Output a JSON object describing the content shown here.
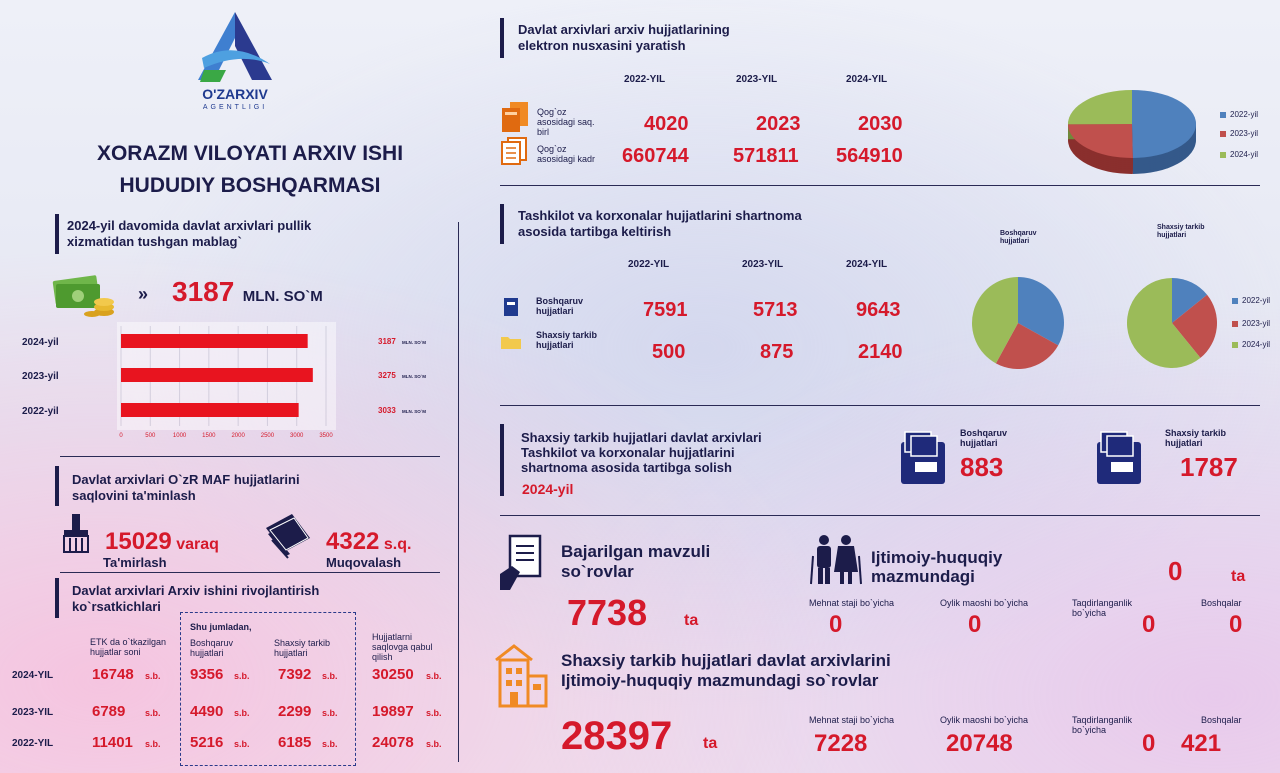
{
  "header": {
    "logo_text": "O'ZARXIV",
    "logo_sub": "AGENTLIGI",
    "title_line1": "XORAZM VILOYATI ARXIV ISHI",
    "title_line2": "HUDUDIY BOSHQARMASI"
  },
  "revenue": {
    "title_line1": "2024-yil davomida davlat arxivlari pullik",
    "title_line2": "xizmatidan tushgan mablag`",
    "total_value": "3187",
    "total_unit": "MLN. SO`M",
    "bars": [
      {
        "year": "2024-yil",
        "value": 3187,
        "label": "3187",
        "unit": "MLN. SO`M"
      },
      {
        "year": "2023-yil",
        "value": 3275,
        "label": "3275",
        "unit": "MLN. SO`M"
      },
      {
        "year": "2022-yil",
        "value": 3033,
        "label": "3033",
        "unit": "MLN. SO`M"
      }
    ],
    "ticks": [
      "0",
      "500",
      "1000",
      "1500",
      "2000",
      "2500",
      "3000",
      "3500"
    ]
  },
  "maf": {
    "title_line1": "Davlat arxivlari O`zR MAF hujjatlarini",
    "title_line2": "saqlovini ta'minlash",
    "repair_value": "15029",
    "repair_unit": "varaq",
    "repair_label": "Ta'mirlash",
    "binding_value": "4322",
    "binding_unit": "s.q.",
    "binding_label": "Muqovalash"
  },
  "dev": {
    "title_line1": "Davlat arxivlari Arxiv ishini rivojlantirish",
    "title_line2": "ko`rsatkichlari",
    "col_etk": "ETK da o`tkazilgan hujjatlar soni",
    "shu_jumladan": "Shu jumladan,",
    "col_boshqaruv": "Boshqaruv hujjatlari",
    "col_shaxsiy": "Shaxsiy tarkib hujjatlari",
    "col_qabul": "Hujjatlarni saqlovga qabul qilish",
    "unit": "s.b.",
    "rows": [
      {
        "year": "2024-YIL",
        "etk": "16748",
        "boshqaruv": "9356",
        "shaxsiy": "7392",
        "qabul": "30250"
      },
      {
        "year": "2023-YIL",
        "etk": "6789",
        "boshqaruv": "4490",
        "shaxsiy": "2299",
        "qabul": "19897"
      },
      {
        "year": "2022-YIL",
        "etk": "11401",
        "boshqaruv": "5216",
        "shaxsiy": "6185",
        "qabul": "24078"
      }
    ]
  },
  "electronic": {
    "title_line1": "Davlat arxivlari arxiv hujjatlarining",
    "title_line2": "elektron nusxasini yaratish",
    "years": [
      "2022-YIL",
      "2023-YIL",
      "2024-YIL"
    ],
    "row1_label": "Qog`oz asosidagi saq. birl",
    "row1_values": [
      "4020",
      "2023",
      "2030"
    ],
    "row2_label": "Qog`oz asosidagi kadr",
    "row2_values": [
      "660744",
      "571811",
      "564910"
    ],
    "legend": [
      "2022-yil",
      "2023-yil",
      "2024-yil"
    ]
  },
  "contract": {
    "title_line1": "Tashkilot va korxonalar hujjatlarini shartnoma",
    "title_line2": "asosida tartibga keltirish",
    "years": [
      "2022-YIL",
      "2023-YIL",
      "2024-YIL"
    ],
    "row1_label": "Boshqaruv hujjatlari",
    "row1_values": [
      "7591",
      "5713",
      "9643"
    ],
    "row2_label": "Shaxsiy tarkib hujjatlari",
    "row2_values": [
      "500",
      "875",
      "2140"
    ],
    "pie1_title": "Boshqaruv hujjatlari",
    "pie2_title": "Shaxsiy tarkib hujjatlari",
    "legend": [
      "2022-yil",
      "2023-yil",
      "2024-yil"
    ]
  },
  "personnel": {
    "title_line1": "Shaxsiy tarkib hujjatlari davlat arxivlari",
    "title_line2": "Tashkilot va korxonalar hujjatlarini",
    "title_line3": "shartnoma asosida tartibga solish",
    "year": "2024-yil",
    "b_label": "Boshqaruv hujjatlari",
    "b_value": "883",
    "s_label": "Shaxsiy tarkib hujjatlari",
    "s_value": "1787"
  },
  "thematic": {
    "title_line1": "Bajarilgan mavzuli",
    "title_line2": "so`rovlar",
    "value": "7738",
    "unit": "ta"
  },
  "social": {
    "title_line1": "Ijtimoiy-huquqiy",
    "title_line2": "mazmundagi",
    "value": "0",
    "unit": "ta",
    "cats": [
      {
        "label": "Mehnat staji bo`yicha",
        "value": "0"
      },
      {
        "label": "Oylik maoshi bo`yicha",
        "value": "0"
      },
      {
        "label": "Taqdirlanganlik bo`yicha",
        "value": "0"
      },
      {
        "label": "Boshqalar",
        "value": "0"
      }
    ]
  },
  "personnel_social": {
    "title_line1": "Shaxsiy tarkib hujjatlari davlat arxivlarini",
    "title_line2": "Ijtimoiy-huquqiy mazmundagi so`rovlar",
    "value": "28397",
    "unit": "ta",
    "cats": [
      {
        "label": "Mehnat staji bo`yicha",
        "value": "7228"
      },
      {
        "label": "Oylik maoshi bo`yicha",
        "value": "20748"
      },
      {
        "label": "Taqdirlanganlik bo`yicha",
        "value": "0"
      },
      {
        "label": "Boshqalar",
        "value": "421"
      }
    ]
  },
  "colors": {
    "navy": "#1c1c4a",
    "red": "#d5192b",
    "blue": "#4f81bd",
    "pie_red": "#c0504d",
    "green": "#9bbb59"
  },
  "chart_data": [
    {
      "type": "bar",
      "categories": [
        "2024-yil",
        "2023-yil",
        "2022-yil"
      ],
      "values": [
        3187,
        3275,
        3033
      ],
      "xlim": [
        0,
        3500
      ],
      "orientation": "horizontal",
      "ticks": [
        "0",
        "500",
        "1000",
        "1500",
        "2000",
        "2500",
        "3000",
        "3500"
      ]
    },
    {
      "type": "pie",
      "categories": [
        "2022-yil",
        "2023-yil",
        "2024-yil"
      ],
      "values": [
        4020,
        2023,
        2030
      ],
      "legend_position": "right"
    },
    {
      "type": "pie",
      "title": "Boshqaruv hujjatlari",
      "categories": [
        "2022-yil",
        "2023-yil",
        "2024-yil"
      ],
      "values": [
        7591,
        5713,
        9643
      ]
    },
    {
      "type": "pie",
      "title": "Shaxsiy tarkib hujjatlari",
      "categories": [
        "2022-yil",
        "2023-yil",
        "2024-yil"
      ],
      "values": [
        500,
        875,
        2140
      ],
      "legend_position": "right"
    }
  ]
}
